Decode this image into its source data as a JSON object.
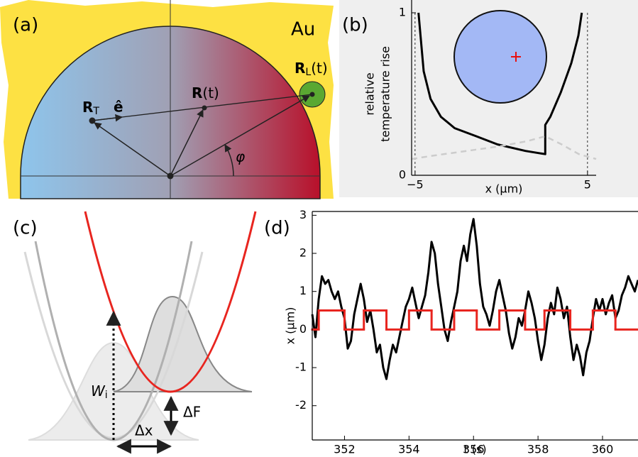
{
  "diagram_a": {
    "label": "(a)",
    "metal": "Au",
    "r_target": {
      "main": "R",
      "sub": "T"
    },
    "unit_vector": "ê",
    "r_particle": {
      "main": "R",
      "tail": "(t)"
    },
    "r_laser": {
      "main": "R",
      "sub": "L",
      "tail": "(t)"
    },
    "angle": "φ"
  },
  "diagram_c": {
    "label": "(c)",
    "work": {
      "main": "W",
      "sub": "i"
    },
    "free_energy": "ΔF",
    "shift": "Δx"
  },
  "chart_data": [
    {
      "type": "line",
      "label": "(b)",
      "ylabel": [
        "relative",
        "temperature rise"
      ],
      "xlabel": "x (μm)",
      "xlim": [
        -5.2,
        5.5
      ],
      "ylim": [
        0,
        1
      ],
      "xticks": [
        {
          "value": -5,
          "label": "−5"
        },
        5
      ],
      "yticks": [
        0,
        1
      ],
      "xgrid_style": "dashed",
      "background": "#efefef",
      "series": [
        {
          "color": "#000000",
          "dash": false,
          "x": [
            -4.8,
            -4.5,
            -4.1,
            -3.5,
            -2.7,
            -1.45,
            -0.22,
            1.4,
            2.55,
            2.55,
            2.84,
            3.45,
            4.06,
            4.47,
            4.67
          ],
          "values": [
            1,
            0.64,
            0.47,
            0.36,
            0.29,
            0.24,
            0.19,
            0.15,
            0.13,
            0.31,
            0.36,
            0.51,
            0.69,
            0.86,
            1
          ]
        },
        {
          "color": "#cccccc",
          "dash": true,
          "x": [
            -5.2,
            -4,
            -2,
            0,
            1.5,
            2.55,
            3.5,
            4.5,
            5.5
          ],
          "values": [
            0.1,
            0.12,
            0.15,
            0.18,
            0.21,
            0.24,
            0.19,
            0.13,
            0.1
          ]
        }
      ]
    },
    {
      "type": "line",
      "label": "(d)",
      "xlabel": "t (s)",
      "ylabel": "x (μm)",
      "xlim": [
        351,
        361.1
      ],
      "ylim": [
        -2.9,
        3.1
      ],
      "xticks": [
        352,
        354,
        356,
        358,
        360
      ],
      "yticks": [
        -2,
        -1,
        0,
        1,
        2,
        3
      ],
      "series": [
        {
          "color": "#000000",
          "step": false,
          "x": [
            351.0,
            351.1,
            351.2,
            351.3,
            351.4,
            351.5,
            351.6,
            351.7,
            351.8,
            351.9,
            352.0,
            352.1,
            352.2,
            352.3,
            352.4,
            352.5,
            352.6,
            352.7,
            352.8,
            352.9,
            353.0,
            353.1,
            353.2,
            353.3,
            353.4,
            353.5,
            353.6,
            353.7,
            353.8,
            353.9,
            354.0,
            354.1,
            354.2,
            354.3,
            354.4,
            354.5,
            354.6,
            354.7,
            354.8,
            354.9,
            355.0,
            355.1,
            355.2,
            355.3,
            355.4,
            355.5,
            355.6,
            355.7,
            355.8,
            355.9,
            356.0,
            356.1,
            356.2,
            356.3,
            356.4,
            356.5,
            356.6,
            356.7,
            356.8,
            356.9,
            357.0,
            357.1,
            357.2,
            357.3,
            357.4,
            357.5,
            357.6,
            357.7,
            357.8,
            357.9,
            358.0,
            358.1,
            358.2,
            358.3,
            358.4,
            358.5,
            358.6,
            358.7,
            358.8,
            358.9,
            359.0,
            359.1,
            359.2,
            359.3,
            359.4,
            359.5,
            359.6,
            359.7,
            359.8,
            359.9,
            360.0,
            360.1,
            360.2,
            360.3,
            360.4,
            360.5,
            360.6,
            360.7,
            360.8,
            360.9,
            361.0,
            361.1
          ],
          "values": [
            0.4,
            -0.2,
            0.8,
            1.4,
            1.2,
            1.3,
            1.0,
            0.8,
            1.0,
            0.6,
            0.3,
            -0.5,
            -0.3,
            0.4,
            0.8,
            1.2,
            0.8,
            0.2,
            0.5,
            0.0,
            -0.6,
            -0.4,
            -1.0,
            -1.3,
            -0.8,
            -0.4,
            -0.6,
            -0.2,
            0.2,
            0.6,
            0.8,
            1.1,
            0.7,
            0.3,
            0.6,
            0.9,
            1.5,
            2.3,
            2.0,
            1.2,
            0.6,
            0.0,
            -0.3,
            0.2,
            0.6,
            1.0,
            1.8,
            2.2,
            1.8,
            2.5,
            2.9,
            2.2,
            1.2,
            0.6,
            0.4,
            0.1,
            0.5,
            1.0,
            1.3,
            0.9,
            0.5,
            -0.1,
            -0.5,
            -0.2,
            0.3,
            0.1,
            0.5,
            1.0,
            0.7,
            0.3,
            -0.3,
            -0.8,
            -0.4,
            0.3,
            0.7,
            0.4,
            1.1,
            0.8,
            0.3,
            0.6,
            -0.2,
            -0.8,
            -0.4,
            -0.7,
            -1.2,
            -0.6,
            -0.3,
            0.3,
            0.8,
            0.5,
            0.8,
            0.4,
            0.7,
            0.9,
            0.3,
            0.5,
            0.9,
            1.1,
            1.4,
            1.2,
            1.0,
            1.3
          ]
        },
        {
          "color": "#e8251f",
          "step": true,
          "x": [
            351,
            351.2,
            352.0,
            352.6,
            353.3,
            354.0,
            354.7,
            355.4,
            356.1,
            356.8,
            357.6,
            358.2,
            359.0,
            359.7,
            360.4,
            361.1
          ],
          "values": [
            0,
            0.5,
            0,
            0.5,
            0,
            0.5,
            0,
            0.5,
            0,
            0.5,
            0,
            0.5,
            0,
            0.5,
            0,
            0
          ]
        }
      ]
    }
  ]
}
